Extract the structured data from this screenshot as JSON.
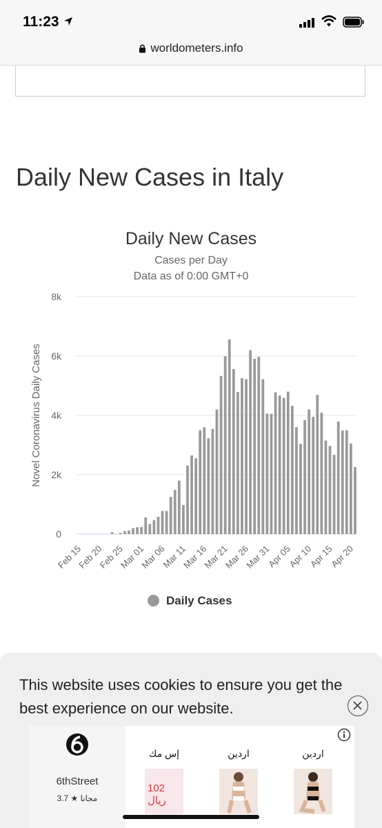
{
  "status_bar": {
    "time": "11:23"
  },
  "browser": {
    "url": "worldometers.info"
  },
  "section_title": "Daily New Cases in Italy",
  "chart_data": {
    "type": "bar",
    "title": "Daily New Cases",
    "subtitle_lines": [
      "Cases per Day",
      "Data as of 0:00 GMT+0"
    ],
    "ylabel": "Novel Coronavirus Daily Cases",
    "xlabel": "",
    "ylim": [
      0,
      8000
    ],
    "y_ticks": [
      0,
      2000,
      4000,
      6000,
      8000
    ],
    "y_tick_labels": [
      "0",
      "2k",
      "4k",
      "6k",
      "8k"
    ],
    "x_tick_labels": [
      "Feb 15",
      "Feb 20",
      "Feb 25",
      "Mar 01",
      "Mar 06",
      "Mar 11",
      "Mar 16",
      "Mar 21",
      "Mar 26",
      "Mar 31",
      "Apr 05",
      "Apr 10",
      "Apr 15",
      "Apr 20"
    ],
    "grid": true,
    "legend_position": "bottom",
    "series": [
      {
        "name": "Daily Cases",
        "color": "#999999",
        "start_date": "2020-02-15",
        "values": [
          0,
          0,
          0,
          0,
          0,
          0,
          0,
          0,
          62,
          0,
          40,
          100,
          120,
          200,
          230,
          240,
          560,
          340,
          470,
          580,
          780,
          780,
          1250,
          1490,
          1800,
          980,
          2310,
          2650,
          2550,
          3500,
          3600,
          3230,
          3540,
          4200,
          5330,
          5990,
          6560,
          5560,
          4790,
          5250,
          5220,
          6200,
          5910,
          5970,
          5220,
          4060,
          4050,
          4780,
          4670,
          4590,
          4800,
          4320,
          3600,
          3040,
          3840,
          4200,
          3950,
          4690,
          4090,
          3150,
          2970,
          2670,
          3790,
          3490,
          3500,
          3050,
          2260
        ]
      }
    ]
  },
  "legend": {
    "label": "Daily Cases"
  },
  "cookie_banner": {
    "text": "This website uses cookies to ensure you get the best experience on our website."
  },
  "ad": {
    "brand": "6thStreet",
    "rating": "3.7 ★ مجانا",
    "items": [
      {
        "label": "إس مك",
        "price": "102 ريال"
      },
      {
        "label": "اردين"
      },
      {
        "label": "اردين"
      }
    ]
  }
}
